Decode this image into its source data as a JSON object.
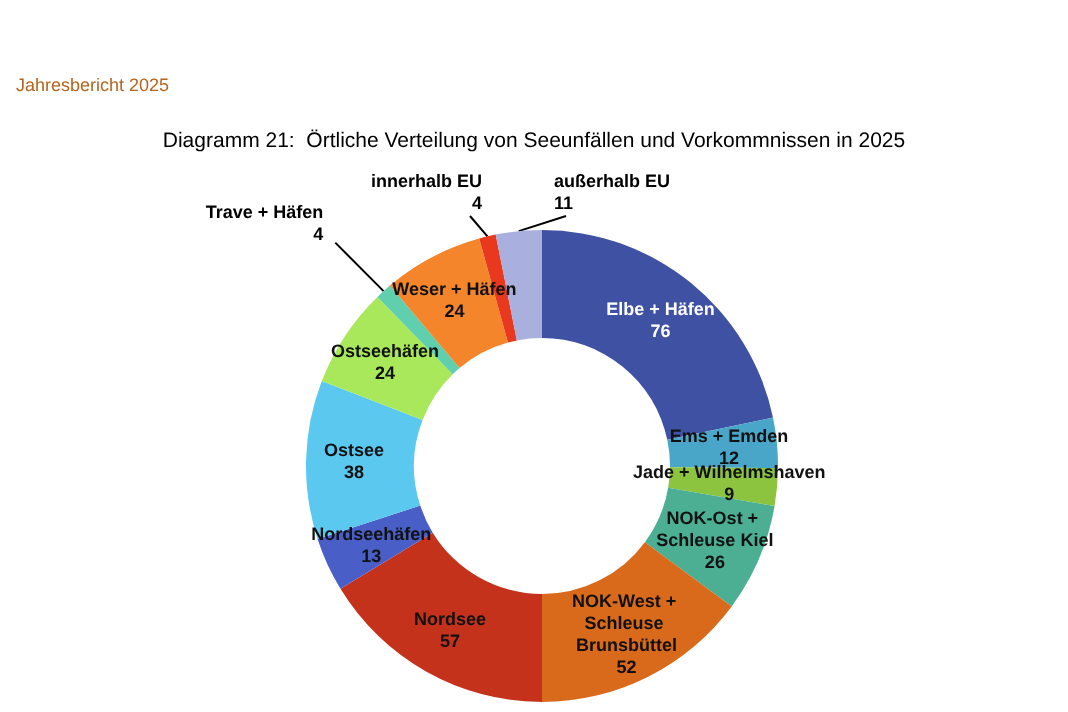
{
  "chart_data": {
    "type": "donut",
    "title": "Diagramm 21:  Örtliche Verteilung von Seeunfällen und Vorkommnissen in 2025",
    "annotations": [
      "Jahresbericht 2025"
    ],
    "categories": [
      "Elbe + Häfen",
      "Ems + Emden",
      "Jade + Wilhelmshaven",
      "NOK-Ost + Schleuse Kiel",
      "NOK-West + Schleuse Brunsbüttel",
      "Nordsee",
      "Nordseehäfen",
      "Ostsee",
      "Ostseehäfen",
      "Trave + Häfen",
      "Weser + Häfen",
      "innerhalb EU",
      "außerhalb EU"
    ],
    "values": [
      76,
      12,
      9,
      26,
      52,
      57,
      13,
      38,
      24,
      4,
      24,
      4,
      11
    ],
    "colors": [
      "#3f51a3",
      "#4aa6c8",
      "#8cc43f",
      "#4caf93",
      "#d96a1c",
      "#c5321c",
      "#4a5ec8",
      "#5bc8f0",
      "#a8e85a",
      "#5fcfad",
      "#f5852a",
      "#e8381e",
      "#a9b0dd"
    ],
    "data_labels": true,
    "legend": false
  }
}
